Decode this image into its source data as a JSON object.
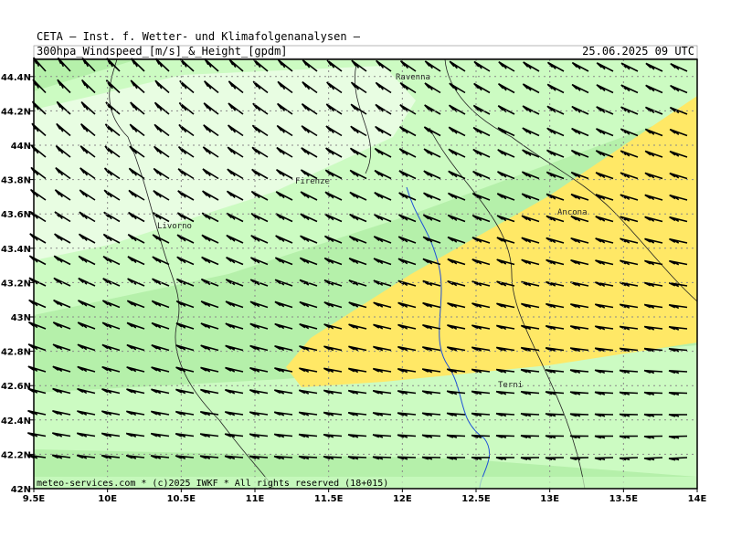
{
  "header": {
    "line1": "CETA – Inst. f. Wetter- und Klimafolgenanalysen –",
    "subtitle": "300hpa_Windspeed_[m/s]_&_Height_[gpdm]",
    "date": "25.06.2025 09 UTC"
  },
  "footer": "meteo-services.com * (c)2025 IWKF * All rights reserved (18+015)",
  "map": {
    "lonlim": [
      9.5,
      14
    ],
    "latlim": [
      42,
      44.5
    ],
    "xticks": [
      {
        "value": 9.5,
        "label": "9.5E"
      },
      {
        "value": 10,
        "label": "10E"
      },
      {
        "value": 10.5,
        "label": "10.5E"
      },
      {
        "value": 11,
        "label": "11E"
      },
      {
        "value": 11.5,
        "label": "11.5E"
      },
      {
        "value": 12,
        "label": "12E"
      },
      {
        "value": 12.5,
        "label": "12.5E"
      },
      {
        "value": 13,
        "label": "13E"
      },
      {
        "value": 13.5,
        "label": "13.5E"
      },
      {
        "value": 14,
        "label": "14E"
      }
    ],
    "yticks": [
      {
        "value": 42,
        "label": "42N"
      },
      {
        "value": 42.2,
        "label": "42.2N"
      },
      {
        "value": 42.4,
        "label": "42.4N"
      },
      {
        "value": 42.6,
        "label": "42.6N"
      },
      {
        "value": 42.8,
        "label": "42.8N"
      },
      {
        "value": 43,
        "label": "43N"
      },
      {
        "value": 43.2,
        "label": "43.2N"
      },
      {
        "value": 43.4,
        "label": "43.4N"
      },
      {
        "value": 43.6,
        "label": "43.6N"
      },
      {
        "value": 43.8,
        "label": "43.8N"
      },
      {
        "value": 44,
        "label": "44N"
      },
      {
        "value": 44.2,
        "label": "44.2N"
      },
      {
        "value": 44.4,
        "label": "44.4N"
      }
    ],
    "cities": [
      "Ravenna",
      "Firenze",
      "Livorno",
      "Ancona",
      "Terni"
    ]
  }
}
